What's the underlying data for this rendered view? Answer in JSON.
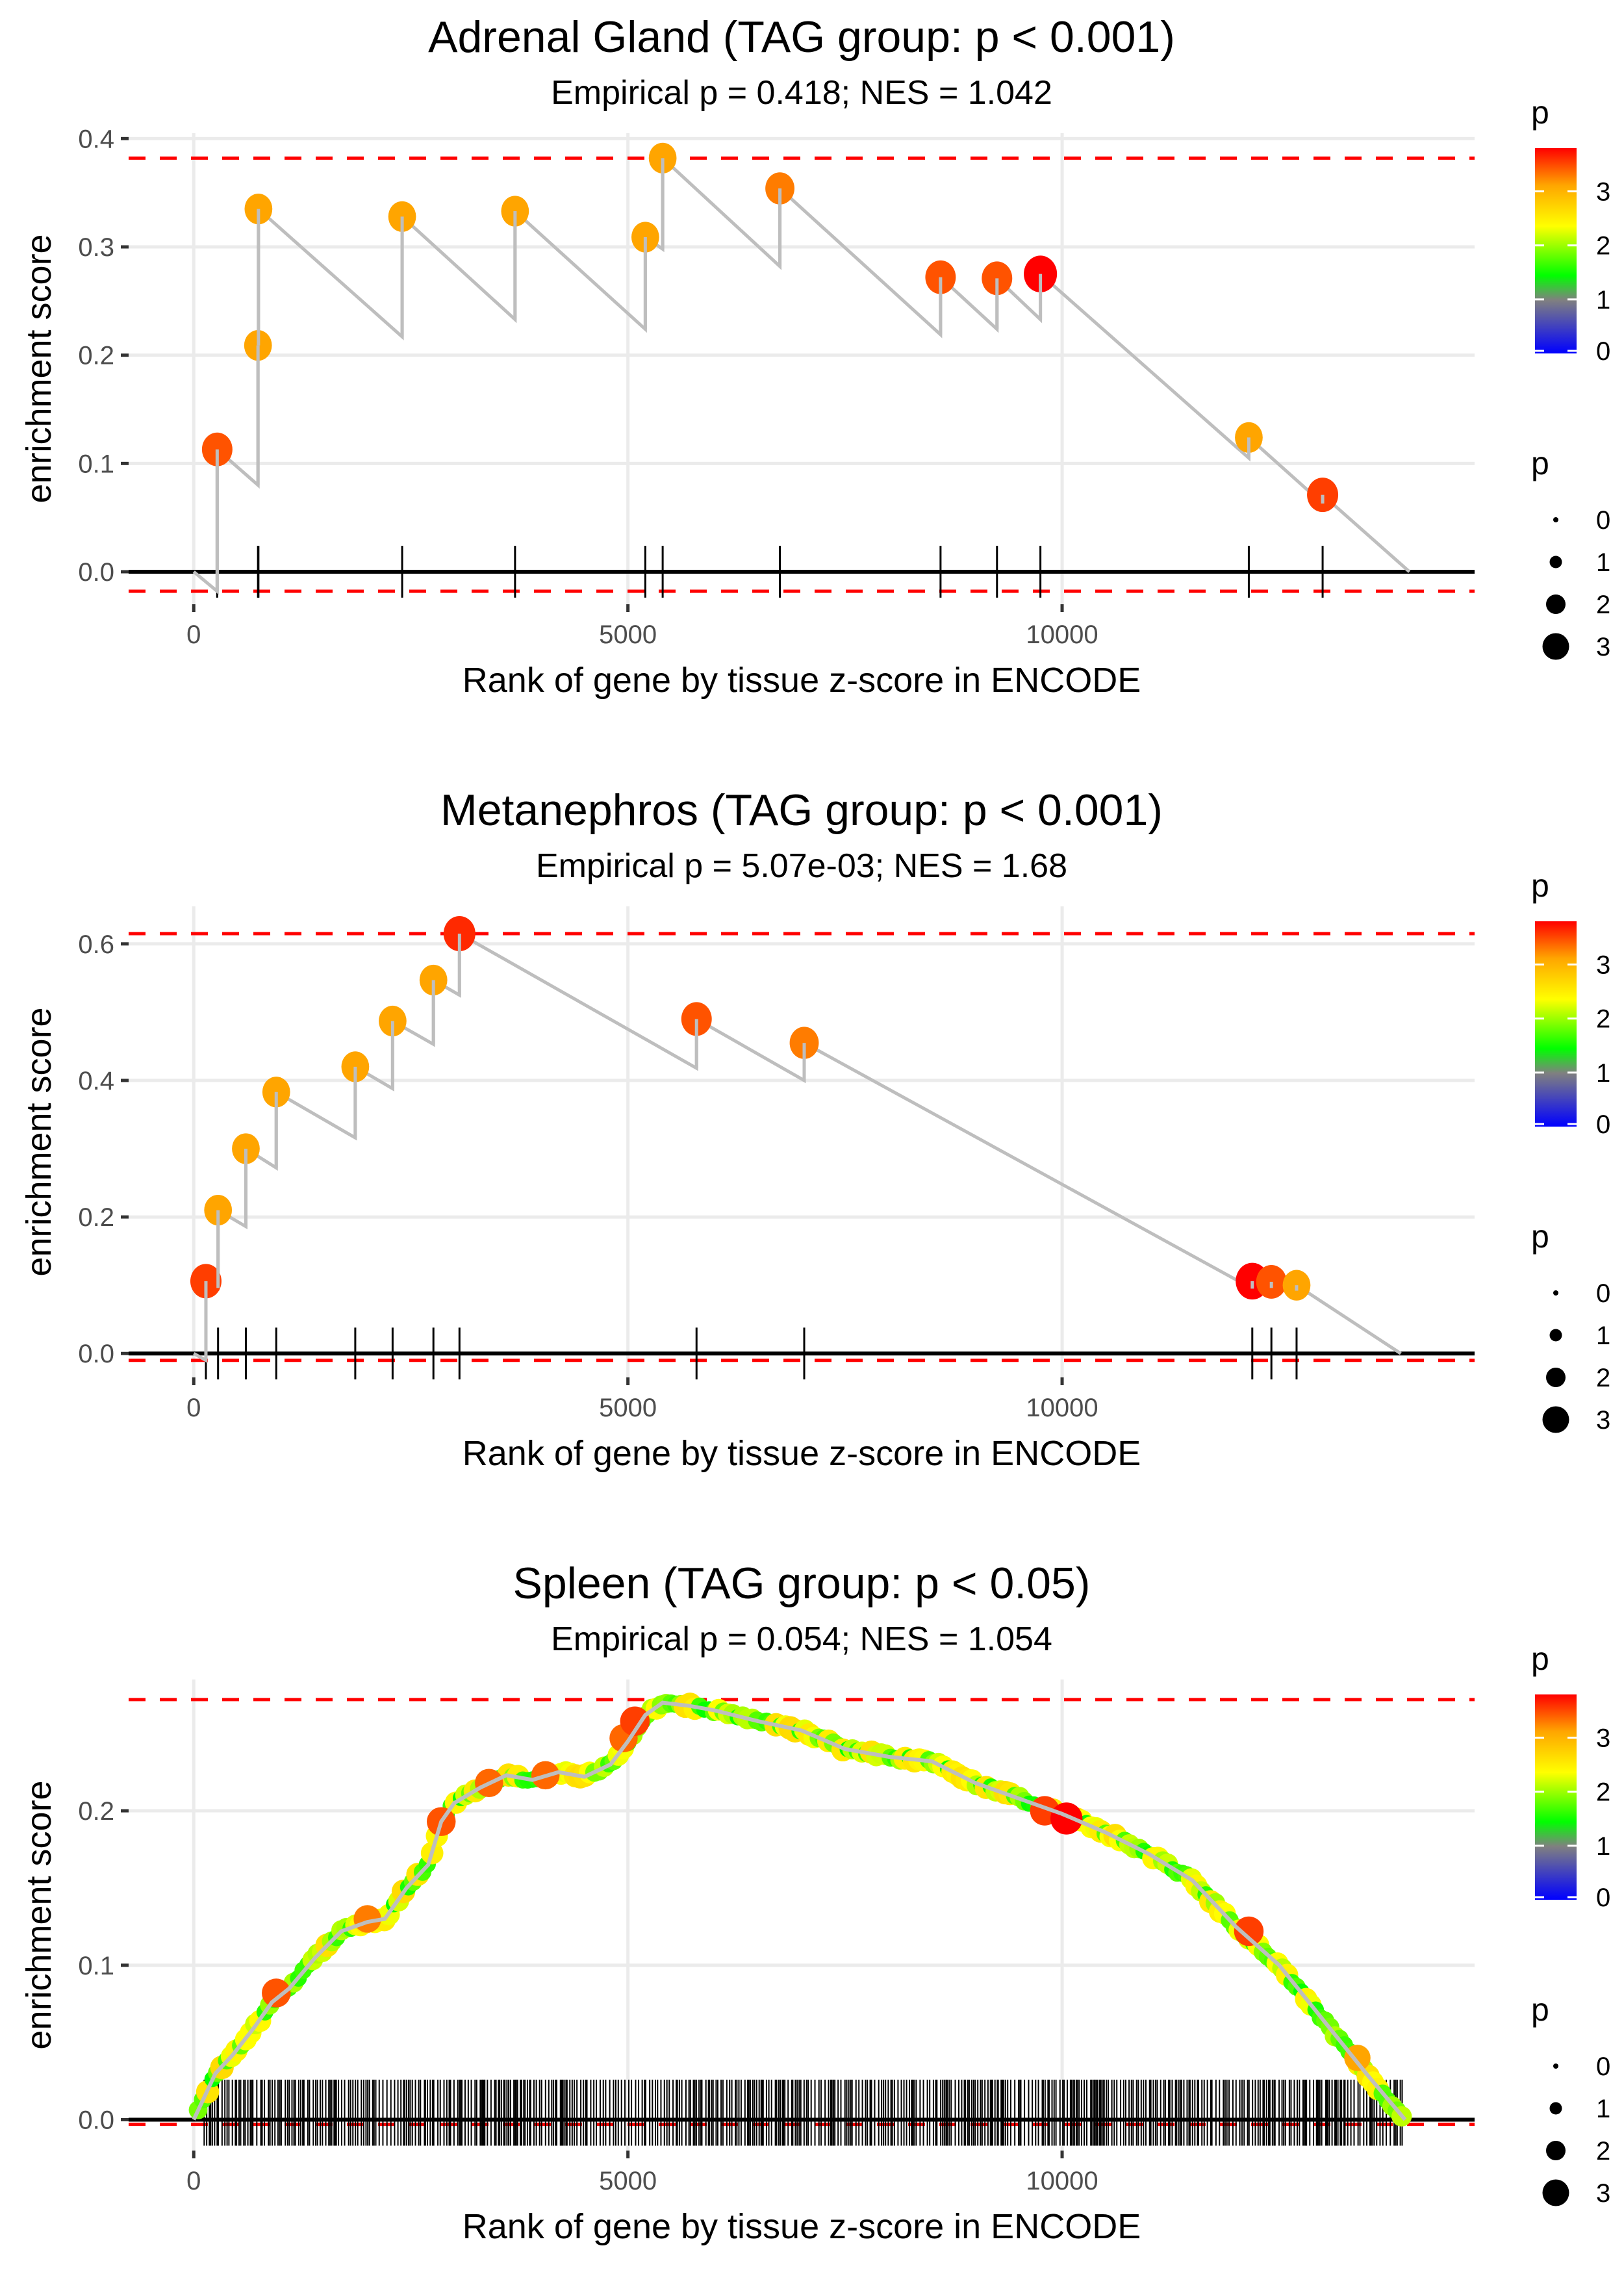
{
  "chart_data": [
    {
      "type": "line",
      "title": "Adrenal Gland (TAG group: p < 0.001)",
      "subtitle": "Empirical p = 0.418; NES = 1.042",
      "xlabel": "Rank of gene by tissue z-score in ENCODE",
      "ylabel": "enrichment score",
      "xlim": [
        -750,
        14750
      ],
      "ylim": [
        -0.03,
        0.405
      ],
      "x_ticks": [
        0,
        5000,
        10000
      ],
      "x_tick_labels": [
        "0",
        "5000",
        "10000"
      ],
      "y_ticks": [
        0.0,
        0.1,
        0.2,
        0.3,
        0.4
      ],
      "y_tick_labels": [
        "0.0",
        "0.1",
        "0.2",
        "0.3",
        "0.4"
      ],
      "max_es": 0.382,
      "min_es": -0.018,
      "n_genes": 14000,
      "hits": [
        {
          "x": 270,
          "before": -0.018,
          "after": 0.113,
          "p": 3.4
        },
        {
          "x": 740,
          "before": 0.08,
          "after": 0.209,
          "p": 3.0
        },
        {
          "x": 745,
          "before": 0.209,
          "after": 0.335,
          "p": 3.0
        },
        {
          "x": 2400,
          "before": 0.217,
          "after": 0.328,
          "p": 3.0
        },
        {
          "x": 3700,
          "before": 0.233,
          "after": 0.333,
          "p": 3.0
        },
        {
          "x": 5200,
          "before": 0.224,
          "after": 0.309,
          "p": 3.0
        },
        {
          "x": 5400,
          "before": 0.298,
          "after": 0.382,
          "p": 3.0
        },
        {
          "x": 6750,
          "before": 0.282,
          "after": 0.354,
          "p": 3.2
        },
        {
          "x": 8600,
          "before": 0.219,
          "after": 0.272,
          "p": 3.4
        },
        {
          "x": 9250,
          "before": 0.224,
          "after": 0.271,
          "p": 3.4
        },
        {
          "x": 9750,
          "before": 0.233,
          "after": 0.275,
          "p": 3.8
        },
        {
          "x": 12150,
          "before": 0.105,
          "after": 0.124,
          "p": 3.0
        },
        {
          "x": 13000,
          "before": 0.063,
          "after": 0.071,
          "p": 3.5
        }
      ]
    },
    {
      "type": "line",
      "title": "Metanephros (TAG group: p < 0.001)",
      "subtitle": "Empirical p = 5.07e-03; NES = 1.68",
      "xlabel": "Rank of gene by tissue z-score in ENCODE",
      "ylabel": "enrichment score",
      "xlim": [
        -750,
        14750
      ],
      "ylim": [
        -0.035,
        0.655
      ],
      "x_ticks": [
        0,
        5000,
        10000
      ],
      "x_tick_labels": [
        "0",
        "5000",
        "10000"
      ],
      "y_ticks": [
        0.0,
        0.2,
        0.4,
        0.6
      ],
      "y_tick_labels": [
        "0.0",
        "0.2",
        "0.4",
        "0.6"
      ],
      "max_es": 0.615,
      "min_es": -0.01,
      "n_genes": 13900,
      "hits": [
        {
          "x": 140,
          "before": -0.01,
          "after": 0.106,
          "p": 3.5
        },
        {
          "x": 280,
          "before": 0.096,
          "after": 0.21,
          "p": 3.0
        },
        {
          "x": 600,
          "before": 0.186,
          "after": 0.3,
          "p": 3.0
        },
        {
          "x": 950,
          "before": 0.272,
          "after": 0.383,
          "p": 3.0
        },
        {
          "x": 1860,
          "before": 0.316,
          "after": 0.42,
          "p": 3.0
        },
        {
          "x": 2290,
          "before": 0.388,
          "after": 0.487,
          "p": 3.0
        },
        {
          "x": 2760,
          "before": 0.453,
          "after": 0.547,
          "p": 3.0
        },
        {
          "x": 3060,
          "before": 0.525,
          "after": 0.615,
          "p": 3.6
        },
        {
          "x": 5790,
          "before": 0.418,
          "after": 0.49,
          "p": 3.4
        },
        {
          "x": 7030,
          "before": 0.4,
          "after": 0.455,
          "p": 3.2
        },
        {
          "x": 12190,
          "before": 0.095,
          "after": 0.106,
          "p": 3.8
        },
        {
          "x": 12410,
          "before": 0.096,
          "after": 0.105,
          "p": 3.4
        },
        {
          "x": 12700,
          "before": 0.092,
          "after": 0.1,
          "p": 3.0
        }
      ]
    },
    {
      "type": "line",
      "title": "Spleen (TAG group: p < 0.05)",
      "subtitle": "Empirical p = 0.054; NES = 1.054",
      "xlabel": "Rank of gene by tissue z-score in ENCODE",
      "ylabel": "enrichment score",
      "xlim": [
        -750,
        14750
      ],
      "ylim": [
        -0.02,
        0.285
      ],
      "x_ticks": [
        0,
        5000,
        10000
      ],
      "x_tick_labels": [
        "0",
        "5000",
        "10000"
      ],
      "y_ticks": [
        0.0,
        0.1,
        0.2
      ],
      "y_tick_labels": [
        "0.0",
        "0.1",
        "0.2"
      ],
      "max_es": 0.272,
      "min_es": -0.003,
      "n_genes": 13950,
      "curve": [
        [
          0,
          0.0
        ],
        [
          100,
          0.012
        ],
        [
          250,
          0.03
        ],
        [
          450,
          0.042
        ],
        [
          700,
          0.06
        ],
        [
          900,
          0.076
        ],
        [
          1100,
          0.085
        ],
        [
          1400,
          0.105
        ],
        [
          1700,
          0.122
        ],
        [
          2000,
          0.128
        ],
        [
          2200,
          0.13
        ],
        [
          2450,
          0.15
        ],
        [
          2700,
          0.165
        ],
        [
          2850,
          0.193
        ],
        [
          3000,
          0.205
        ],
        [
          3300,
          0.215
        ],
        [
          3600,
          0.223
        ],
        [
          3900,
          0.22
        ],
        [
          4200,
          0.225
        ],
        [
          4500,
          0.222
        ],
        [
          4800,
          0.23
        ],
        [
          5000,
          0.245
        ],
        [
          5200,
          0.262
        ],
        [
          5400,
          0.27
        ],
        [
          5700,
          0.268
        ],
        [
          6000,
          0.265
        ],
        [
          6500,
          0.258
        ],
        [
          7000,
          0.252
        ],
        [
          7500,
          0.24
        ],
        [
          8000,
          0.235
        ],
        [
          8500,
          0.232
        ],
        [
          9000,
          0.218
        ],
        [
          9500,
          0.208
        ],
        [
          10000,
          0.198
        ],
        [
          10500,
          0.186
        ],
        [
          11000,
          0.172
        ],
        [
          11500,
          0.155
        ],
        [
          12000,
          0.125
        ],
        [
          12500,
          0.1
        ],
        [
          13000,
          0.065
        ],
        [
          13500,
          0.03
        ],
        [
          13950,
          0.0
        ]
      ],
      "highlight_points": [
        {
          "x": 950,
          "y": 0.082,
          "p": 3.4
        },
        {
          "x": 2000,
          "y": 0.13,
          "p": 3.2
        },
        {
          "x": 2850,
          "y": 0.193,
          "p": 3.4
        },
        {
          "x": 3400,
          "y": 0.218,
          "p": 3.3
        },
        {
          "x": 4050,
          "y": 0.223,
          "p": 3.3
        },
        {
          "x": 4950,
          "y": 0.247,
          "p": 3.3
        },
        {
          "x": 5080,
          "y": 0.258,
          "p": 3.5
        },
        {
          "x": 9800,
          "y": 0.2,
          "p": 3.5
        },
        {
          "x": 10050,
          "y": 0.195,
          "p": 3.9
        },
        {
          "x": 12150,
          "y": 0.122,
          "p": 3.5
        },
        {
          "x": 13400,
          "y": 0.04,
          "p": 3.0
        }
      ]
    }
  ],
  "legend": {
    "color_title": "p",
    "color_ticks": [
      "3",
      "2",
      "1",
      "0"
    ],
    "size_title": "p",
    "size_labels": [
      "0",
      "1",
      "2",
      "3"
    ]
  },
  "colors": {
    "accent_dashed": "#ff0000",
    "walk_line": "#bebebe",
    "grid": "#ebebeb",
    "gradient": [
      "#0000ff",
      "#808080",
      "#00ff00",
      "#ffff00",
      "#ffa500",
      "#ff0000"
    ]
  }
}
